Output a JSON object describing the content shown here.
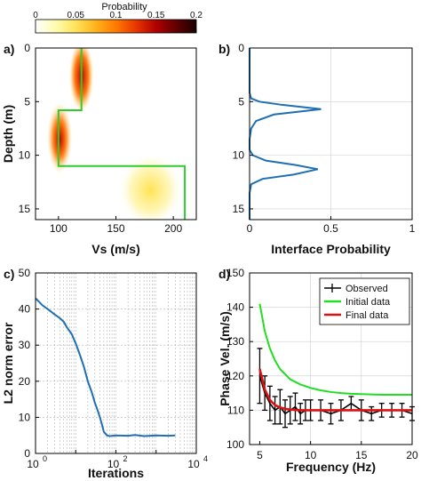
{
  "chart_data": [
    {
      "panel": "colorbar",
      "type": "heatmap",
      "title": "Probability",
      "range": [
        0,
        0.2
      ],
      "ticks": [
        "0",
        "0.05",
        "0.1",
        "0.15",
        "0.2"
      ],
      "colormap": [
        "#ffffff",
        "#fffcb0",
        "#ffe35a",
        "#ffb21c",
        "#ff7a00",
        "#e83600",
        "#b00000",
        "#600000",
        "#1a0000"
      ]
    },
    {
      "panel": "a)",
      "type": "heatmap",
      "xlabel": "Vs (m/s)",
      "ylabel": "Depth (m)",
      "xlim": [
        80,
        220
      ],
      "ylim": [
        0,
        16
      ],
      "yreversed": true,
      "xticks": [
        "100",
        "150",
        "200"
      ],
      "yticks": [
        "0",
        "5",
        "10",
        "15"
      ],
      "density": [
        {
          "vs": [
            115,
            125
          ],
          "depth": [
            0,
            5.2
          ],
          "p": 0.17
        },
        {
          "vs": [
            116,
            124
          ],
          "depth": [
            0,
            5.2
          ],
          "p": 0.2
        },
        {
          "vs": [
            96,
            106
          ],
          "depth": [
            5.8,
            11
          ],
          "p": 0.12
        },
        {
          "vs": [
            98,
            104
          ],
          "depth": [
            6.5,
            10.5
          ],
          "p": 0.15
        },
        {
          "vs": [
            160,
            200
          ],
          "depth": [
            10.5,
            16
          ],
          "p": 0.04
        }
      ],
      "series": [
        {
          "color": "#2ecc2e",
          "vs": [
            120,
            120,
            100,
            100,
            210,
            210
          ],
          "depth": [
            0,
            5.8,
            5.8,
            11,
            11,
            16
          ]
        }
      ]
    },
    {
      "panel": "b)",
      "type": "line",
      "xlabel": "Interface Probability",
      "xlim": [
        0,
        1
      ],
      "ylim": [
        0,
        16
      ],
      "yreversed": true,
      "grid": true,
      "xticks": [
        "0",
        "0.5",
        "1"
      ],
      "yticks": [
        "0",
        "5",
        "10",
        "15"
      ],
      "series": [
        {
          "color": "#1f6fb5",
          "x": [
            0,
            0,
            0.01,
            0.06,
            0.2,
            0.44,
            0.15,
            0.04,
            0.01,
            0,
            0,
            0.02,
            0.1,
            0.28,
            0.42,
            0.27,
            0.08,
            0.01,
            0,
            0
          ],
          "depth": [
            0,
            4.2,
            4.7,
            5.0,
            5.3,
            5.7,
            6.2,
            6.8,
            7.5,
            8.5,
            9.5,
            10.0,
            10.5,
            10.9,
            11.3,
            11.8,
            12.2,
            12.7,
            13.5,
            16
          ]
        }
      ]
    },
    {
      "panel": "c)",
      "type": "line",
      "xlabel": "Iterations",
      "ylabel": "L2 norm error",
      "xscale": "log",
      "xlim": [
        1,
        10000
      ],
      "ylim": [
        0,
        50
      ],
      "grid": true,
      "xticks": [
        "10",
        "10",
        "10",
        "10",
        "10"
      ],
      "xtick_exponents": [
        "0",
        "",
        "2",
        "",
        "4"
      ],
      "yticks": [
        "0",
        "10",
        "20",
        "30",
        "40",
        "50"
      ],
      "series": [
        {
          "color": "#1f6fb5",
          "x": [
            1,
            1.5,
            2,
            3,
            4,
            5,
            6,
            8,
            10,
            13,
            16,
            20,
            25,
            30,
            35,
            40,
            45,
            50,
            60,
            70,
            100,
            200,
            300,
            500,
            1000,
            2000,
            3000
          ],
          "y": [
            43,
            41,
            40,
            38.5,
            37.5,
            36.5,
            35,
            33,
            30.5,
            27,
            24,
            20,
            17,
            14,
            12,
            10,
            8,
            6,
            5,
            4.8,
            5,
            4.9,
            5.1,
            4.8,
            5,
            4.9,
            5
          ]
        }
      ]
    },
    {
      "panel": "d)",
      "type": "line",
      "xlabel": "Frequency (Hz)",
      "ylabel": "Phase Vel. (m/s)",
      "xlim": [
        4,
        20
      ],
      "ylim": [
        100,
        150
      ],
      "grid": true,
      "xticks": [
        "5",
        "10",
        "15",
        "20"
      ],
      "yticks": [
        "100",
        "110",
        "120",
        "130",
        "140",
        "150"
      ],
      "legend": "top-right",
      "series": [
        {
          "name": "Observed",
          "color": "#000000",
          "errorbars": true,
          "x": [
            5,
            5.5,
            6,
            6.5,
            7,
            7.5,
            8,
            8.5,
            9,
            9.5,
            10,
            11,
            12,
            13,
            14,
            15,
            16,
            17,
            18,
            19,
            20
          ],
          "y": [
            120,
            115,
            112,
            110,
            111,
            109,
            110,
            111,
            109,
            110,
            110,
            110,
            109,
            110,
            112,
            110,
            109,
            110,
            110,
            110,
            109
          ],
          "err": [
            8,
            5,
            5,
            4,
            5,
            4,
            4,
            4,
            3,
            3,
            3,
            3,
            3,
            3,
            2,
            3,
            2,
            2,
            2,
            2,
            2
          ]
        },
        {
          "name": "Initial data",
          "color": "#22dd22",
          "x": [
            5,
            5.5,
            6,
            6.5,
            7,
            7.5,
            8,
            9,
            10,
            11,
            12,
            13,
            14,
            15,
            16,
            17,
            18,
            19,
            20
          ],
          "y": [
            141,
            133,
            128,
            124.5,
            122,
            120.5,
            119,
            117.5,
            116.5,
            115.8,
            115.3,
            115,
            114.8,
            114.7,
            114.6,
            114.5,
            114.5,
            114.5,
            114.5
          ]
        },
        {
          "name": "Final data",
          "color": "#e01010",
          "x": [
            5,
            5.5,
            6,
            6.5,
            7,
            7.5,
            8,
            9,
            10,
            11,
            12,
            13,
            14,
            15,
            16,
            17,
            18,
            19,
            20
          ],
          "y": [
            122,
            116,
            113,
            111.5,
            110.8,
            110.4,
            110.2,
            110,
            110,
            110,
            110,
            110,
            110,
            110,
            110,
            110,
            110,
            110,
            110
          ]
        }
      ]
    }
  ],
  "panel_labels": [
    "a)",
    "b)",
    "c)",
    "d)"
  ]
}
